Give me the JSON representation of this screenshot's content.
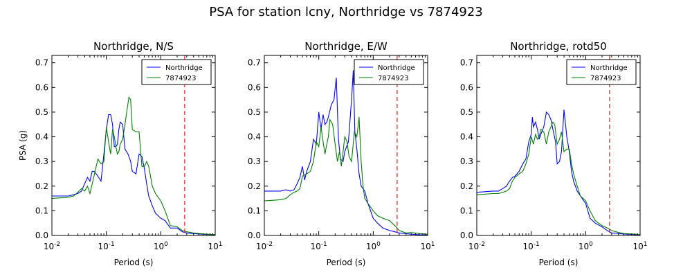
{
  "suptitle": "PSA for station lcny, Northridge vs 7874923",
  "chart_data": [
    {
      "type": "line",
      "title": "Northridge, N/S",
      "xlabel": "Period (s)",
      "ylabel": "PSA (g)",
      "xscale": "log",
      "xlim": [
        0.01,
        10
      ],
      "ylim": [
        0,
        0.73
      ],
      "xticks": [
        "10^-2",
        "10^-1",
        "10^0",
        "10^1"
      ],
      "yticks": [
        "0.0",
        "0.1",
        "0.2",
        "0.3",
        "0.4",
        "0.5",
        "0.6",
        "0.7"
      ],
      "legend": "top-right",
      "vline": {
        "x": 2.75,
        "color": "#ff0000",
        "style": "dashed"
      },
      "series": [
        {
          "name": "Northridge",
          "color": "#0000ff",
          "x": [
            0.01,
            0.02,
            0.025,
            0.03,
            0.035,
            0.04,
            0.045,
            0.05,
            0.055,
            0.06,
            0.07,
            0.08,
            0.09,
            0.1,
            0.11,
            0.12,
            0.13,
            0.14,
            0.15,
            0.16,
            0.17,
            0.18,
            0.2,
            0.22,
            0.25,
            0.28,
            0.3,
            0.35,
            0.4,
            0.45,
            0.5,
            0.55,
            0.6,
            0.7,
            0.8,
            1.0,
            1.2,
            1.5,
            2.0,
            2.5,
            3.0,
            4.0,
            5.0,
            7.0,
            10.0
          ],
          "y": [
            0.16,
            0.16,
            0.165,
            0.17,
            0.18,
            0.21,
            0.235,
            0.22,
            0.26,
            0.26,
            0.24,
            0.22,
            0.33,
            0.43,
            0.49,
            0.49,
            0.45,
            0.36,
            0.36,
            0.37,
            0.43,
            0.46,
            0.45,
            0.35,
            0.33,
            0.3,
            0.26,
            0.25,
            0.33,
            0.32,
            0.27,
            0.21,
            0.16,
            0.12,
            0.09,
            0.07,
            0.06,
            0.03,
            0.03,
            0.015,
            0.01,
            0.008,
            0.006,
            0.004,
            0.003
          ]
        },
        {
          "name": "7874923",
          "color": "#008000",
          "x": [
            0.01,
            0.02,
            0.025,
            0.03,
            0.035,
            0.04,
            0.045,
            0.05,
            0.06,
            0.07,
            0.08,
            0.09,
            0.1,
            0.11,
            0.12,
            0.13,
            0.14,
            0.15,
            0.16,
            0.17,
            0.18,
            0.2,
            0.22,
            0.24,
            0.26,
            0.28,
            0.3,
            0.35,
            0.4,
            0.45,
            0.5,
            0.55,
            0.6,
            0.7,
            0.8,
            1.0,
            1.2,
            1.5,
            2.0,
            2.5,
            3.0,
            4.0,
            5.0,
            7.0,
            10.0
          ],
          "y": [
            0.15,
            0.155,
            0.16,
            0.175,
            0.19,
            0.18,
            0.2,
            0.17,
            0.245,
            0.31,
            0.29,
            0.3,
            0.44,
            0.38,
            0.33,
            0.43,
            0.4,
            0.36,
            0.33,
            0.34,
            0.37,
            0.39,
            0.45,
            0.51,
            0.56,
            0.55,
            0.43,
            0.42,
            0.42,
            0.28,
            0.28,
            0.3,
            0.28,
            0.2,
            0.17,
            0.14,
            0.1,
            0.04,
            0.035,
            0.02,
            0.015,
            0.01,
            0.008,
            0.005,
            0.004
          ]
        }
      ]
    },
    {
      "type": "line",
      "title": "Northridge, E/W",
      "xlabel": "Period (s)",
      "ylabel": "",
      "xscale": "log",
      "xlim": [
        0.01,
        10
      ],
      "ylim": [
        0,
        0.73
      ],
      "xticks": [
        "10^-2",
        "10^-1",
        "10^0",
        "10^1"
      ],
      "yticks": [
        "0.0",
        "0.1",
        "0.2",
        "0.3",
        "0.4",
        "0.5",
        "0.6",
        "0.7"
      ],
      "legend": "top-right",
      "vline": {
        "x": 2.75,
        "color": "#ff0000",
        "style": "dashed"
      },
      "series": [
        {
          "name": "Northridge",
          "color": "#0000ff",
          "x": [
            0.01,
            0.02,
            0.025,
            0.03,
            0.035,
            0.04,
            0.045,
            0.05,
            0.055,
            0.06,
            0.07,
            0.08,
            0.09,
            0.1,
            0.11,
            0.12,
            0.13,
            0.14,
            0.15,
            0.17,
            0.19,
            0.21,
            0.23,
            0.25,
            0.28,
            0.3,
            0.35,
            0.4,
            0.43,
            0.46,
            0.5,
            0.55,
            0.6,
            0.7,
            0.8,
            1.0,
            1.2,
            1.5,
            2.0,
            2.5,
            3.0,
            4.0,
            5.0,
            7.0,
            10.0
          ],
          "y": [
            0.18,
            0.18,
            0.185,
            0.18,
            0.185,
            0.21,
            0.235,
            0.28,
            0.225,
            0.26,
            0.3,
            0.39,
            0.37,
            0.5,
            0.43,
            0.49,
            0.45,
            0.46,
            0.48,
            0.53,
            0.55,
            0.64,
            0.39,
            0.31,
            0.3,
            0.34,
            0.38,
            0.55,
            0.67,
            0.42,
            0.35,
            0.25,
            0.2,
            0.18,
            0.13,
            0.07,
            0.05,
            0.03,
            0.02,
            0.015,
            0.01,
            0.007,
            0.005,
            0.003,
            0.002
          ]
        },
        {
          "name": "7874923",
          "color": "#008000",
          "x": [
            0.01,
            0.02,
            0.025,
            0.03,
            0.035,
            0.04,
            0.045,
            0.05,
            0.06,
            0.07,
            0.08,
            0.09,
            0.1,
            0.11,
            0.12,
            0.13,
            0.14,
            0.15,
            0.16,
            0.17,
            0.18,
            0.2,
            0.22,
            0.24,
            0.26,
            0.28,
            0.3,
            0.33,
            0.36,
            0.4,
            0.45,
            0.5,
            0.55,
            0.6,
            0.65,
            0.7,
            0.8,
            1.0,
            1.2,
            1.5,
            2.0,
            2.5,
            3.0,
            4.0,
            5.0,
            7.0,
            10.0
          ],
          "y": [
            0.14,
            0.145,
            0.15,
            0.165,
            0.175,
            0.18,
            0.19,
            0.24,
            0.25,
            0.26,
            0.3,
            0.38,
            0.36,
            0.44,
            0.38,
            0.33,
            0.37,
            0.4,
            0.47,
            0.46,
            0.45,
            0.37,
            0.3,
            0.34,
            0.28,
            0.34,
            0.4,
            0.38,
            0.32,
            0.3,
            0.42,
            0.4,
            0.48,
            0.3,
            0.2,
            0.15,
            0.13,
            0.1,
            0.08,
            0.07,
            0.06,
            0.04,
            0.02,
            0.01,
            0.012,
            0.008,
            0.005
          ]
        }
      ]
    },
    {
      "type": "line",
      "title": "Northridge, rotd50",
      "xlabel": "Period (s)",
      "ylabel": "",
      "xscale": "log",
      "xlim": [
        0.01,
        10
      ],
      "ylim": [
        0,
        0.73
      ],
      "xticks": [
        "10^-2",
        "10^-1",
        "10^0",
        "10^1"
      ],
      "yticks": [
        "0.0",
        "0.1",
        "0.2",
        "0.3",
        "0.4",
        "0.5",
        "0.6",
        "0.7"
      ],
      "legend": "top-right",
      "vline": {
        "x": 2.75,
        "color": "#ff0000",
        "style": "dashed"
      },
      "series": [
        {
          "name": "Northridge",
          "color": "#0000ff",
          "x": [
            0.01,
            0.02,
            0.025,
            0.03,
            0.035,
            0.04,
            0.045,
            0.05,
            0.06,
            0.07,
            0.08,
            0.09,
            0.1,
            0.105,
            0.11,
            0.12,
            0.13,
            0.14,
            0.15,
            0.17,
            0.19,
            0.21,
            0.23,
            0.25,
            0.28,
            0.3,
            0.33,
            0.36,
            0.4,
            0.45,
            0.5,
            0.55,
            0.6,
            0.7,
            0.8,
            1.0,
            1.2,
            1.5,
            2.0,
            2.5,
            3.0,
            4.0,
            5.0,
            7.0,
            10.0
          ],
          "y": [
            0.175,
            0.18,
            0.18,
            0.19,
            0.2,
            0.22,
            0.235,
            0.24,
            0.26,
            0.29,
            0.31,
            0.38,
            0.41,
            0.48,
            0.44,
            0.46,
            0.43,
            0.39,
            0.41,
            0.44,
            0.5,
            0.49,
            0.47,
            0.43,
            0.38,
            0.29,
            0.3,
            0.34,
            0.51,
            0.4,
            0.34,
            0.26,
            0.22,
            0.18,
            0.16,
            0.13,
            0.07,
            0.05,
            0.035,
            0.02,
            0.01,
            0.008,
            0.006,
            0.004,
            0.003
          ]
        },
        {
          "name": "7874923",
          "color": "#008000",
          "x": [
            0.01,
            0.02,
            0.025,
            0.03,
            0.035,
            0.04,
            0.045,
            0.05,
            0.06,
            0.07,
            0.08,
            0.09,
            0.1,
            0.11,
            0.12,
            0.13,
            0.14,
            0.15,
            0.17,
            0.19,
            0.21,
            0.23,
            0.25,
            0.27,
            0.3,
            0.33,
            0.36,
            0.4,
            0.45,
            0.5,
            0.55,
            0.6,
            0.7,
            0.8,
            1.0,
            1.2,
            1.5,
            2.0,
            2.5,
            3.0,
            4.0,
            5.0,
            7.0,
            10.0
          ],
          "y": [
            0.165,
            0.17,
            0.17,
            0.175,
            0.18,
            0.19,
            0.22,
            0.235,
            0.25,
            0.26,
            0.29,
            0.33,
            0.4,
            0.37,
            0.41,
            0.39,
            0.4,
            0.43,
            0.42,
            0.37,
            0.42,
            0.44,
            0.46,
            0.45,
            0.37,
            0.39,
            0.42,
            0.34,
            0.35,
            0.35,
            0.29,
            0.25,
            0.2,
            0.16,
            0.14,
            0.1,
            0.06,
            0.04,
            0.03,
            0.02,
            0.012,
            0.008,
            0.006,
            0.004
          ]
        }
      ]
    }
  ]
}
